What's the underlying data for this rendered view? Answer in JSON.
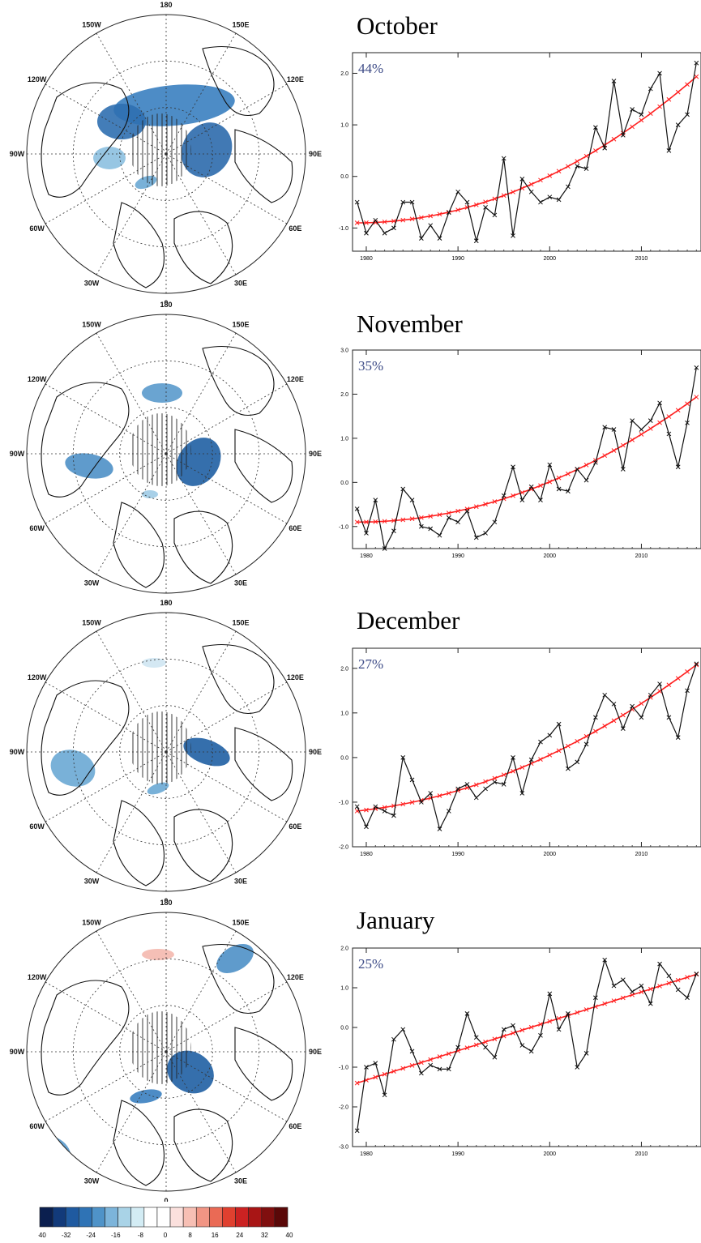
{
  "figure": {
    "colors": {
      "ice_blue_dark": "#1f5fa3",
      "ice_blue_light": "#bfe0f0",
      "trend_red": "#ff2020",
      "series_black": "#111111",
      "percent_text": "#3c4a86"
    }
  },
  "colorbar": {
    "tick_labels": [
      "-40",
      "-32",
      "-24",
      "-16",
      "-8",
      "0",
      "8",
      "16",
      "24",
      "32",
      "40"
    ],
    "colors": [
      "#0b1f4f",
      "#123a7a",
      "#1f5aa0",
      "#2f73b5",
      "#4f93c8",
      "#7cb4da",
      "#a9d3e7",
      "#d3ecf4",
      "#ffffff",
      "#ffffff",
      "#fbe0dd",
      "#f7bfb4",
      "#f19584",
      "#ea6a55",
      "#e0402f",
      "#cc2222",
      "#a81515",
      "#800f0f",
      "#5a0808"
    ]
  },
  "maps": [
    {
      "month": "October",
      "labels": {
        "top": "180",
        "bottom": "0",
        "upper_left": "150W",
        "upper_right": "150E",
        "left_upper": "120W",
        "right_upper": "120E",
        "left": "90W",
        "right": "90E",
        "left_lower": "60W",
        "right_lower": "60E",
        "lower_left": "30W",
        "lower_right": "30E"
      }
    },
    {
      "month": "November",
      "labels": {
        "top": "180",
        "bottom": "0",
        "upper_left": "150W",
        "upper_right": "150E",
        "left_upper": "120W",
        "right_upper": "120E",
        "left": "90W",
        "right": "90E",
        "left_lower": "60W",
        "right_lower": "60E",
        "lower_left": "30W",
        "lower_right": "30E"
      }
    },
    {
      "month": "December",
      "labels": {
        "top": "180",
        "bottom": "0",
        "upper_left": "150W",
        "upper_right": "150E",
        "left_upper": "120W",
        "right_upper": "120E",
        "left": "90W",
        "right": "90E",
        "left_lower": "60W",
        "right_lower": "60E",
        "lower_left": "30W",
        "lower_right": "30E"
      }
    },
    {
      "month": "January",
      "labels": {
        "top": "180",
        "bottom": "0",
        "upper_left": "150W",
        "upper_right": "150E",
        "left_upper": "120W",
        "right_upper": "120E",
        "left": "90W",
        "right": "90E",
        "left_lower": "60W",
        "right_lower": "60E",
        "lower_left": "30W",
        "lower_right": "30E"
      }
    }
  ],
  "chart_data": [
    {
      "type": "line",
      "title": "October",
      "annotation": "44%",
      "x_ticks": [
        1980,
        1990,
        2000,
        2010
      ],
      "y_ticks": [
        "-1.0",
        "0.0",
        "1.0",
        "2.0"
      ],
      "y_tick_values": [
        -1,
        0,
        1,
        2
      ],
      "xlim": [
        1978.5,
        2016.5
      ],
      "ylim": [
        -1.45,
        2.4
      ],
      "series": [
        {
          "x": [
            1979,
            1980,
            1981,
            1982,
            1983,
            1984,
            1985,
            1986,
            1987,
            1988,
            1989,
            1990,
            1991,
            1992,
            1993,
            1994,
            1995,
            1996,
            1997,
            1998,
            1999,
            2000,
            2001,
            2002,
            2003,
            2004,
            2005,
            2006,
            2007,
            2008,
            2009,
            2010,
            2011,
            2012,
            2013,
            2014,
            2015,
            2016
          ],
          "values": [
            -0.5,
            -1.1,
            -0.85,
            -1.1,
            -1.0,
            -0.5,
            -0.5,
            -1.2,
            -0.95,
            -1.2,
            -0.7,
            -0.3,
            -0.5,
            -1.25,
            -0.6,
            -0.75,
            0.35,
            -1.15,
            -0.05,
            -0.3,
            -0.5,
            -0.4,
            -0.45,
            -0.2,
            0.2,
            0.15,
            0.95,
            0.55,
            1.85,
            0.8,
            1.3,
            1.2,
            1.7,
            2.0,
            0.5,
            1.0,
            1.2,
            2.2
          ]
        },
        {
          "name": "trend",
          "x": [
            1979,
            2016
          ],
          "poly": [
            -0.9,
            0.0,
            0.00207
          ]
        }
      ]
    },
    {
      "type": "line",
      "title": "November",
      "annotation": "35%",
      "x_ticks": [
        1980,
        1990,
        2000,
        2010
      ],
      "y_ticks": [
        "-1.0",
        "0.0",
        "1.0",
        "2.0",
        "3.0"
      ],
      "y_tick_values": [
        -1,
        0,
        1,
        2,
        3
      ],
      "xlim": [
        1978.5,
        2016.5
      ],
      "ylim": [
        -1.5,
        3.0
      ],
      "series": [
        {
          "x": [
            1979,
            1980,
            1981,
            1982,
            1983,
            1984,
            1985,
            1986,
            1987,
            1988,
            1989,
            1990,
            1991,
            1992,
            1993,
            1994,
            1995,
            1996,
            1997,
            1998,
            1999,
            2000,
            2001,
            2002,
            2003,
            2004,
            2005,
            2006,
            2007,
            2008,
            2009,
            2010,
            2011,
            2012,
            2013,
            2014,
            2015,
            2016
          ],
          "values": [
            -0.6,
            -1.15,
            -0.4,
            -1.5,
            -1.1,
            -0.15,
            -0.4,
            -1.0,
            -1.05,
            -1.2,
            -0.8,
            -0.9,
            -0.65,
            -1.25,
            -1.15,
            -0.9,
            -0.3,
            0.35,
            -0.4,
            -0.1,
            -0.4,
            0.4,
            -0.15,
            -0.2,
            0.3,
            0.05,
            0.45,
            1.25,
            1.2,
            0.3,
            1.4,
            1.2,
            1.4,
            1.8,
            1.1,
            0.35,
            1.35,
            2.6
          ]
        },
        {
          "name": "trend",
          "x": [
            1979,
            2016
          ],
          "poly": [
            -0.9,
            0.0,
            0.00207
          ]
        }
      ]
    },
    {
      "type": "line",
      "title": "December",
      "annotation": "27%",
      "x_ticks": [
        1980,
        1990,
        2000,
        2010
      ],
      "y_ticks": [
        "-2.0",
        "-1.0",
        "0.0",
        "1.0",
        "2.0"
      ],
      "y_tick_values": [
        -2,
        -1,
        0,
        1,
        2
      ],
      "xlim": [
        1978.5,
        2016.5
      ],
      "ylim": [
        -2.0,
        2.45
      ],
      "series": [
        {
          "x": [
            1979,
            1980,
            1981,
            1982,
            1983,
            1984,
            1985,
            1986,
            1987,
            1988,
            1989,
            1990,
            1991,
            1992,
            1993,
            1994,
            1995,
            1996,
            1997,
            1998,
            1999,
            2000,
            2001,
            2002,
            2003,
            2004,
            2005,
            2006,
            2007,
            2008,
            2009,
            2010,
            2011,
            2012,
            2013,
            2014,
            2015,
            2016
          ],
          "values": [
            -1.1,
            -1.55,
            -1.1,
            -1.2,
            -1.3,
            0.0,
            -0.5,
            -1.0,
            -0.8,
            -1.6,
            -1.2,
            -0.7,
            -0.6,
            -0.9,
            -0.7,
            -0.55,
            -0.6,
            0.0,
            -0.8,
            -0.05,
            0.35,
            0.5,
            0.75,
            -0.25,
            -0.1,
            0.3,
            0.9,
            1.4,
            1.2,
            0.65,
            1.15,
            0.9,
            1.4,
            1.65,
            0.9,
            0.45,
            1.5,
            2.1
          ]
        },
        {
          "name": "trend",
          "x": [
            1979,
            2016
          ],
          "poly": [
            -1.2,
            0.022,
            0.0018
          ]
        }
      ]
    },
    {
      "type": "line",
      "title": "January",
      "annotation": "25%",
      "x_ticks": [
        1980,
        1990,
        2000,
        2010
      ],
      "y_ticks": [
        "-3.0",
        "-2.0",
        "-1.0",
        "0.0",
        "1.0",
        "2.0"
      ],
      "y_tick_values": [
        -3,
        -2,
        -1,
        0,
        1,
        2
      ],
      "xlim": [
        1978.5,
        2016.5
      ],
      "ylim": [
        -3.0,
        2.0
      ],
      "series": [
        {
          "x": [
            1979,
            1980,
            1981,
            1982,
            1983,
            1984,
            1985,
            1986,
            1987,
            1988,
            1989,
            1990,
            1991,
            1992,
            1993,
            1994,
            1995,
            1996,
            1997,
            1998,
            1999,
            2000,
            2001,
            2002,
            2003,
            2004,
            2005,
            2006,
            2007,
            2008,
            2009,
            2010,
            2011,
            2012,
            2013,
            2014,
            2015,
            2016
          ],
          "values": [
            -2.6,
            -1.0,
            -0.9,
            -1.7,
            -0.3,
            -0.05,
            -0.6,
            -1.15,
            -0.95,
            -1.05,
            -1.05,
            -0.5,
            0.35,
            -0.25,
            -0.5,
            -0.75,
            -0.05,
            0.05,
            -0.45,
            -0.6,
            -0.2,
            0.85,
            -0.05,
            0.35,
            -1.0,
            -0.65,
            0.75,
            1.7,
            1.05,
            1.2,
            0.9,
            1.05,
            0.6,
            1.6,
            1.3,
            0.95,
            0.75,
            1.35
          ]
        },
        {
          "name": "trend",
          "x": [
            1979,
            2016
          ],
          "poly": [
            -1.4,
            0.074,
            0.0
          ]
        }
      ]
    }
  ]
}
